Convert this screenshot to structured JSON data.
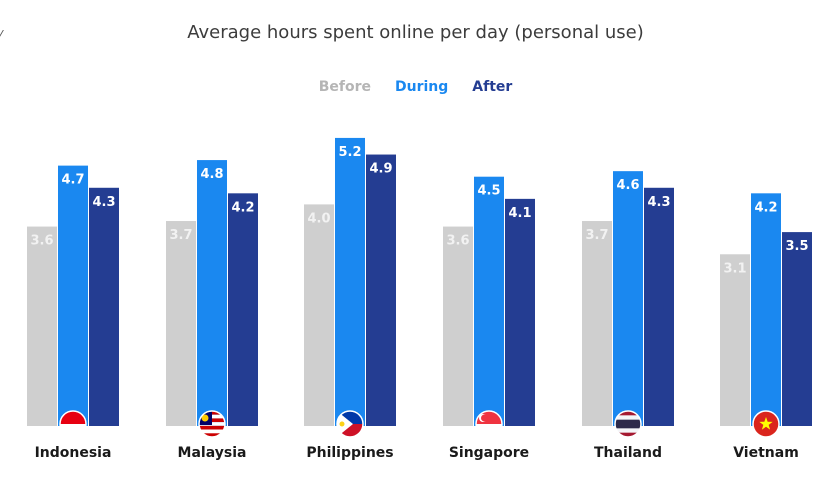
{
  "chart_data": {
    "type": "bar",
    "title": "Average hours spent online per day (personal use)",
    "categories": [
      "Indonesia",
      "Malaysia",
      "Philippines",
      "Singapore",
      "Thailand",
      "Vietnam"
    ],
    "series": [
      {
        "name": "Before",
        "color": "#cfcfcf",
        "label_color": "#f2f2f2",
        "values": [
          3.6,
          3.7,
          4.0,
          3.6,
          3.7,
          3.1
        ]
      },
      {
        "name": "During",
        "color": "#1a88f0",
        "label_color": "#ffffff",
        "values": [
          4.7,
          4.8,
          5.2,
          4.5,
          4.6,
          4.2
        ]
      },
      {
        "name": "After",
        "color": "#243d92",
        "label_color": "#ffffff",
        "values": [
          4.3,
          4.2,
          4.9,
          4.1,
          4.3,
          3.5
        ]
      }
    ],
    "legend_position": "top-center",
    "legend_colors": [
      "#b5b5b5",
      "#1a88f0",
      "#243d92"
    ],
    "flags": [
      "indonesia-flag-icon",
      "malaysia-flag-icon",
      "philippines-flag-icon",
      "singapore-flag-icon",
      "thailand-flag-icon",
      "vietnam-flag-icon"
    ],
    "ylim": [
      0,
      5.2
    ],
    "grid": false,
    "xlabel": "",
    "ylabel": ""
  }
}
